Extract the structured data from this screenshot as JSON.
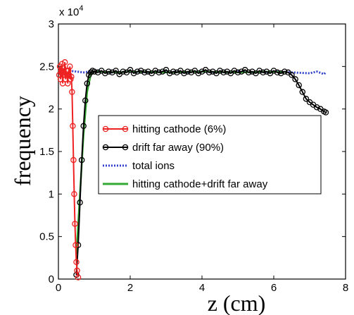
{
  "chart_data": {
    "type": "line",
    "xlabel": "z (cm)",
    "ylabel": "frequency",
    "multiplier": "x 10",
    "multiplier_exp": "4",
    "xlim": [
      0,
      8
    ],
    "ylim": [
      0,
      3
    ],
    "xticks": [
      "0",
      "2",
      "4",
      "6",
      "8"
    ],
    "yticks": [
      "0",
      "0.5",
      "1",
      "1.5",
      "2",
      "2.5",
      "3"
    ],
    "legend_position": "center",
    "series": [
      {
        "name": "hitting cathode (6%)",
        "color": "#ee2222",
        "marker": "circle",
        "x": [
          0.02,
          0.04,
          0.06,
          0.08,
          0.1,
          0.12,
          0.14,
          0.16,
          0.18,
          0.2,
          0.22,
          0.24,
          0.26,
          0.28,
          0.3,
          0.32,
          0.34,
          0.36,
          0.38,
          0.4,
          0.42,
          0.44,
          0.46,
          0.48,
          0.5,
          0.52,
          0.55
        ],
        "y": [
          2.4,
          2.5,
          2.35,
          2.45,
          2.53,
          2.3,
          2.48,
          2.4,
          2.55,
          2.35,
          2.45,
          2.4,
          2.3,
          2.45,
          2.4,
          2.5,
          2.35,
          2.38,
          2.2,
          1.8,
          1.4,
          1.0,
          0.65,
          0.4,
          0.2,
          0.1,
          0.02
        ]
      },
      {
        "name": "drift far away (90%)",
        "color": "#000000",
        "marker": "circle",
        "x": [
          0.5,
          0.55,
          0.6,
          0.65,
          0.7,
          0.75,
          0.8,
          0.85,
          0.9,
          0.95,
          1.0,
          1.1,
          1.2,
          1.3,
          1.4,
          1.5,
          1.6,
          1.7,
          1.8,
          1.9,
          2.0,
          2.1,
          2.2,
          2.3,
          2.4,
          2.5,
          2.6,
          2.7,
          2.8,
          2.9,
          3.0,
          3.1,
          3.2,
          3.3,
          3.4,
          3.5,
          3.6,
          3.7,
          3.8,
          3.9,
          4.0,
          4.1,
          4.2,
          4.3,
          4.4,
          4.5,
          4.6,
          4.7,
          4.8,
          4.9,
          5.0,
          5.1,
          5.2,
          5.3,
          5.4,
          5.5,
          5.6,
          5.7,
          5.8,
          5.9,
          6.0,
          6.1,
          6.2,
          6.3,
          6.4,
          6.5,
          6.6,
          6.7,
          6.8,
          6.9,
          7.0,
          7.1,
          7.2,
          7.3,
          7.4,
          7.45
        ],
        "y": [
          0.05,
          0.4,
          0.9,
          1.4,
          1.8,
          2.1,
          2.3,
          2.4,
          2.43,
          2.45,
          2.44,
          2.43,
          2.45,
          2.42,
          2.44,
          2.43,
          2.45,
          2.41,
          2.44,
          2.43,
          2.46,
          2.42,
          2.44,
          2.45,
          2.43,
          2.44,
          2.42,
          2.45,
          2.43,
          2.44,
          2.46,
          2.42,
          2.44,
          2.43,
          2.45,
          2.42,
          2.44,
          2.43,
          2.45,
          2.42,
          2.44,
          2.46,
          2.43,
          2.44,
          2.42,
          2.45,
          2.43,
          2.44,
          2.42,
          2.45,
          2.43,
          2.44,
          2.46,
          2.43,
          2.44,
          2.42,
          2.45,
          2.43,
          2.44,
          2.42,
          2.45,
          2.43,
          2.42,
          2.44,
          2.43,
          2.4,
          2.35,
          2.28,
          2.2,
          2.12,
          2.08,
          2.05,
          2.02,
          2.0,
          1.97,
          1.96
        ]
      },
      {
        "name": "total ions",
        "color": "#3344cc",
        "marker": "dots",
        "x": [
          0.3,
          0.5,
          0.7,
          0.9,
          1.1,
          1.5,
          2.0,
          2.5,
          3.0,
          3.5,
          4.0,
          4.5,
          5.0,
          5.5,
          6.0,
          6.5,
          7.0,
          7.2,
          7.4,
          7.45
        ],
        "y": [
          2.45,
          2.44,
          2.43,
          2.44,
          2.44,
          2.43,
          2.44,
          2.43,
          2.44,
          2.43,
          2.44,
          2.43,
          2.44,
          2.43,
          2.44,
          2.43,
          2.42,
          2.44,
          2.41,
          2.43
        ]
      },
      {
        "name": "hitting cathode+drift far away",
        "color": "#33aa33",
        "marker": "none",
        "x": [
          0.5,
          0.6,
          0.7,
          0.8,
          0.9,
          1.0,
          1.2,
          1.6,
          2.0,
          3.0,
          4.0,
          5.0,
          6.0,
          6.3
        ],
        "y": [
          0.3,
          1.0,
          1.7,
          2.2,
          2.4,
          2.44,
          2.44,
          2.43,
          2.44,
          2.43,
          2.44,
          2.43,
          2.44,
          2.43
        ]
      }
    ]
  }
}
